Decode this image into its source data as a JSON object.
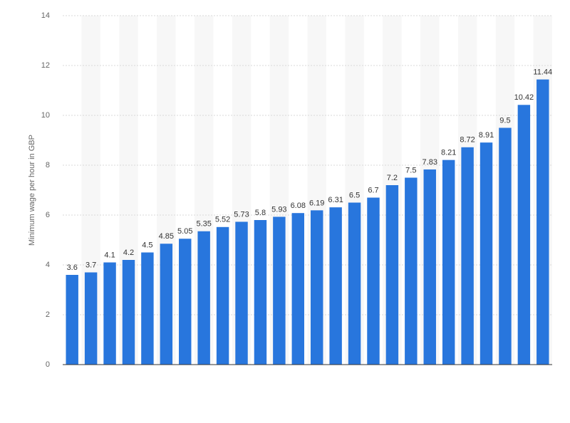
{
  "chart_data": {
    "type": "bar",
    "y_label": "Minimum wage per hour in GBP",
    "categories": [
      null,
      null,
      null,
      null,
      null,
      null,
      null,
      null,
      null,
      null,
      null,
      null,
      null,
      null,
      null,
      null,
      null,
      null,
      null,
      null,
      null,
      null,
      null,
      null,
      null,
      null
    ],
    "values": [
      3.6,
      3.7,
      4.1,
      4.2,
      4.5,
      4.85,
      5.05,
      5.35,
      5.52,
      5.73,
      5.8,
      5.93,
      6.08,
      6.19,
      6.31,
      6.5,
      6.7,
      7.2,
      7.5,
      7.83,
      8.21,
      8.72,
      8.91,
      9.5,
      10.42,
      11.44
    ],
    "color": "#2876dd",
    "ylim": [
      0,
      14
    ],
    "yticks": [
      0,
      2,
      4,
      6,
      8,
      10,
      12,
      14
    ],
    "grid": true
  }
}
